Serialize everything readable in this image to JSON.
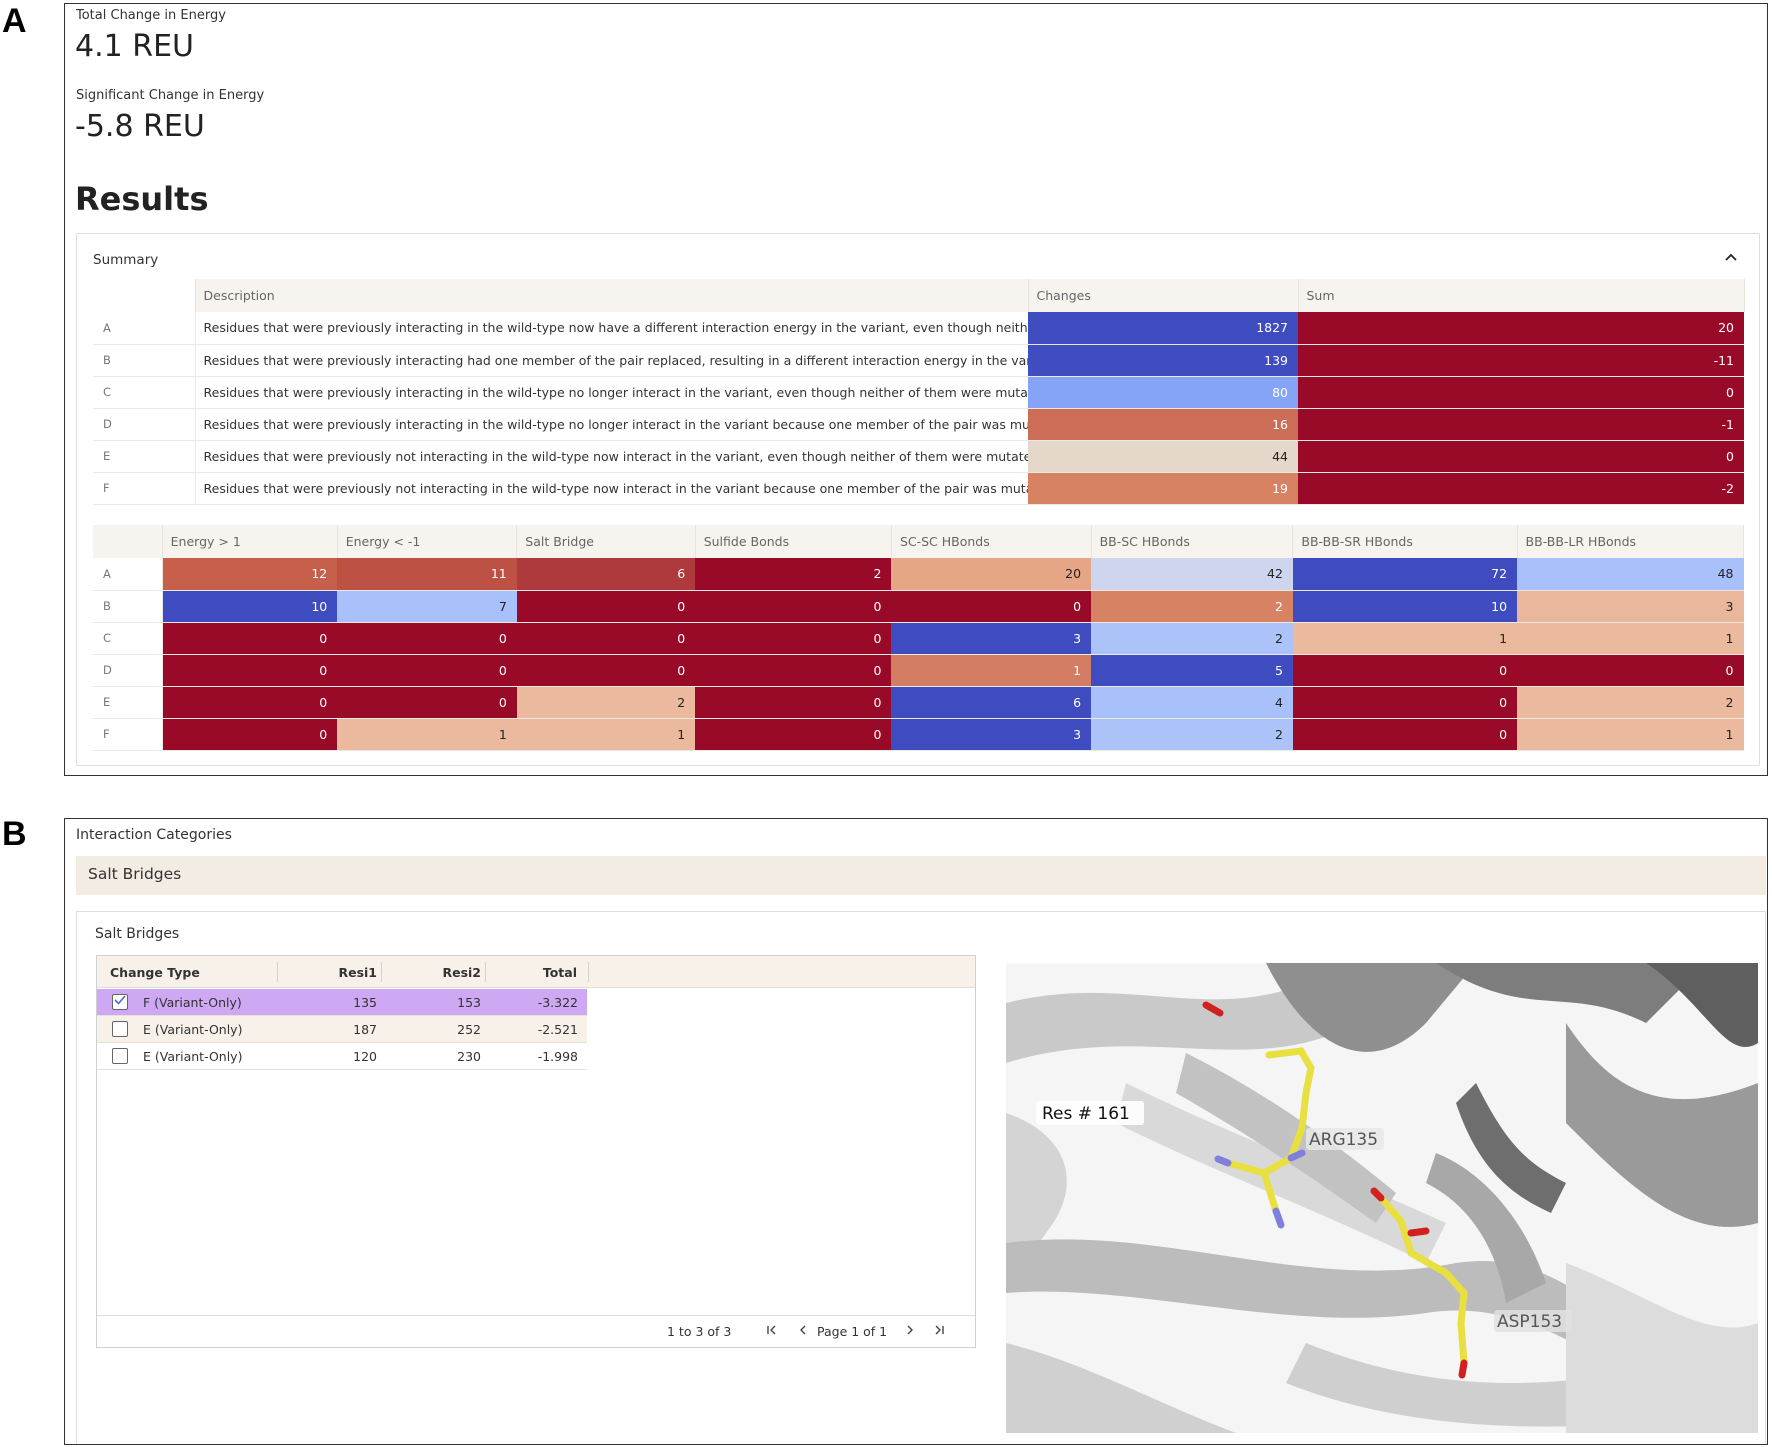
{
  "panel_letters": {
    "a": "A",
    "b": "B"
  },
  "energy": {
    "total_label": "Total Change in Energy",
    "total_value": "4.1 REU",
    "significant_label": "Significant Change in Energy",
    "significant_value": "-5.8 REU"
  },
  "results_title": "Results",
  "summary": {
    "title": "Summary",
    "collapse_icon": "chevron-up-icon",
    "table1": {
      "headers": [
        "",
        "Description",
        "Changes",
        "Sum"
      ],
      "rows": [
        {
          "id": "A",
          "description": "Residues that were previously interacting in the wild-type now have a different interaction energy in the variant, even though neither of them were mutated",
          "changes": "1827",
          "sum": "20",
          "changes_color": "#3f4cbf",
          "sum_color": "#980a28"
        },
        {
          "id": "B",
          "description": "Residues that were previously interacting had one member of the pair replaced, resulting in a different interaction energy in the variant",
          "changes": "139",
          "sum": "-11",
          "changes_color": "#404dc1",
          "sum_color": "#980a28"
        },
        {
          "id": "C",
          "description": "Residues that were previously interacting in the wild-type no longer interact in the variant, even though neither of them were mutated",
          "changes": "80",
          "sum": "0",
          "changes_color": "#86a4f7",
          "sum_color": "#980a28"
        },
        {
          "id": "D",
          "description": "Residues that were previously interacting in the wild-type no longer interact in the variant because one member of the pair was mutated",
          "changes": "16",
          "sum": "-1",
          "changes_color": "#cc6e57",
          "sum_color": "#980a28"
        },
        {
          "id": "E",
          "description": "Residues that were previously not interacting in the wild-type now interact in the variant, even though neither of them were mutated",
          "changes": "44",
          "sum": "0",
          "changes_color": "#e5d7c9",
          "sum_color": "#980a28"
        },
        {
          "id": "F",
          "description": "Residues that were previously not interacting in the wild-type now interact in the variant because one member of the pair was mutated",
          "changes": "19",
          "sum": "-2",
          "changes_color": "#d88264",
          "sum_color": "#980a28"
        }
      ]
    },
    "table2": {
      "headers": [
        "",
        "Energy > 1",
        "Energy < -1",
        "Salt Bridge",
        "Sulfide Bonds",
        "SC-SC HBonds",
        "BB-SC HBonds",
        "BB-BB-SR HBonds",
        "BB-BB-LR HBonds"
      ],
      "rows": [
        {
          "id": "A",
          "values": [
            "12",
            "11",
            "6",
            "2",
            "20",
            "42",
            "72",
            "48"
          ],
          "colors": [
            "#c6604b",
            "#bd5244",
            "#ae3a3d",
            "#980a28",
            "#e6a585",
            "#cdd6ee",
            "#3f4cbf",
            "#a9c1fb"
          ]
        },
        {
          "id": "B",
          "values": [
            "10",
            "7",
            "0",
            "0",
            "0",
            "2",
            "10",
            "3"
          ],
          "colors": [
            "#3f4cbf",
            "#a9c1fb",
            "#980a28",
            "#980a28",
            "#980a28",
            "#d88264",
            "#3f4cbf",
            "#e9b89c"
          ]
        },
        {
          "id": "C",
          "values": [
            "0",
            "0",
            "0",
            "0",
            "3",
            "2",
            "1",
            "1"
          ],
          "colors": [
            "#980a28",
            "#980a28",
            "#980a28",
            "#980a28",
            "#3f4cbf",
            "#acc3fa",
            "#eab99e",
            "#eab99e"
          ]
        },
        {
          "id": "D",
          "values": [
            "0",
            "0",
            "0",
            "0",
            "1",
            "5",
            "0",
            "0"
          ],
          "colors": [
            "#980a28",
            "#980a28",
            "#980a28",
            "#980a28",
            "#d47d63",
            "#3f4cbf",
            "#980a28",
            "#980a28"
          ]
        },
        {
          "id": "E",
          "values": [
            "0",
            "0",
            "2",
            "0",
            "6",
            "4",
            "0",
            "2"
          ],
          "colors": [
            "#980a28",
            "#980a28",
            "#eab99e",
            "#980a28",
            "#3f4cbf",
            "#a9c1fb",
            "#980a28",
            "#eab99e"
          ]
        },
        {
          "id": "F",
          "values": [
            "0",
            "1",
            "1",
            "0",
            "3",
            "2",
            "0",
            "1"
          ],
          "colors": [
            "#980a28",
            "#eab99e",
            "#eab99e",
            "#980a28",
            "#3f4cbf",
            "#acc3fa",
            "#980a28",
            "#eab99e"
          ]
        }
      ]
    }
  },
  "interaction_categories": {
    "title": "Interaction Categories",
    "category_bar": "Salt Bridges",
    "card_title": "Salt Bridges",
    "grid": {
      "headers": [
        "Change Type",
        "Resi1",
        "Resi2",
        "Total"
      ],
      "rows": [
        {
          "checked": true,
          "change_type": "F (Variant-Only)",
          "resi1": "135",
          "resi2": "153",
          "total": "-3.322"
        },
        {
          "checked": false,
          "change_type": "E (Variant-Only)",
          "resi1": "187",
          "resi2": "252",
          "total": "-2.521"
        },
        {
          "checked": false,
          "change_type": "E (Variant-Only)",
          "resi1": "120",
          "resi2": "230",
          "total": "-1.998"
        }
      ],
      "selected_row_color": "#cfa8f3",
      "row_count": "1 to 3 of 3",
      "page_label": "Page 1 of 1",
      "pagination_icons": [
        "first-page-icon",
        "prev-page-icon",
        "next-page-icon",
        "last-page-icon"
      ]
    },
    "structure_labels": {
      "res": "Res # 161",
      "arg": "ARG135",
      "asp": "ASP153"
    }
  }
}
